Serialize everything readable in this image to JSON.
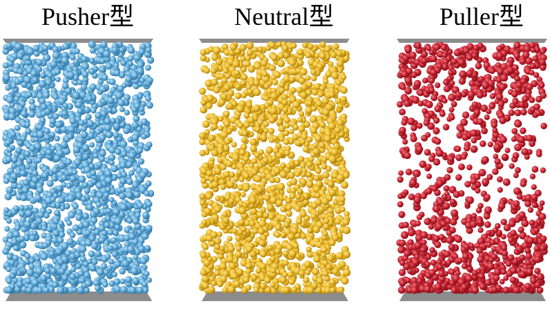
{
  "panels": [
    {
      "title": "Pusher型",
      "color": "#5ba7d6",
      "highlight": "#bfe2f7",
      "shade": "#2f6f99",
      "density_profile": [
        0.95,
        0.85,
        0.95,
        0.9,
        0.95,
        0.9,
        0.85,
        0.9,
        0.95,
        0.95
      ]
    },
    {
      "title": "Neutral型",
      "color": "#e8b628",
      "highlight": "#ffe68a",
      "shade": "#a27808",
      "density_profile": [
        0.9,
        0.85,
        0.9,
        0.85,
        0.9,
        0.9,
        0.9,
        0.9,
        0.95,
        0.95
      ]
    },
    {
      "title": "Puller型",
      "color": "#c4202e",
      "highlight": "#f07a82",
      "shade": "#7a0d16",
      "density_profile": [
        0.85,
        0.7,
        0.45,
        0.35,
        0.3,
        0.3,
        0.4,
        0.6,
        0.9,
        1.0
      ]
    }
  ],
  "plate_color": "#8c8c8c"
}
